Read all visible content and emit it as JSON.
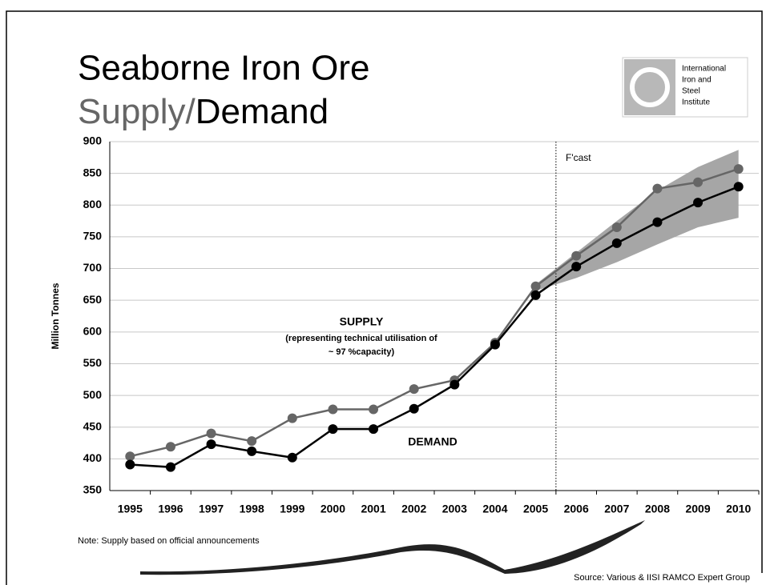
{
  "chart_data": {
    "type": "line",
    "title": "Seaborne Iron Ore",
    "subtitle_parts": [
      "Supply/",
      "Demand"
    ],
    "y_label": "Million Tonnes",
    "categories": [
      "1995",
      "1996",
      "1997",
      "1998",
      "1999",
      "2000",
      "2001",
      "2002",
      "2003",
      "2004",
      "2005",
      "2006",
      "2007",
      "2008",
      "2009",
      "2010"
    ],
    "series": [
      {
        "name": "SUPPLY",
        "color": "#666666",
        "values": [
          404,
          419,
          440,
          428,
          464,
          478,
          478,
          510,
          524,
          583,
          672,
          720,
          765,
          826,
          836,
          857
        ]
      },
      {
        "name": "DEMAND",
        "color": "#000000",
        "values": [
          391,
          387,
          423,
          412,
          402,
          447,
          447,
          479,
          517,
          580,
          658,
          703,
          740,
          773,
          804,
          829
        ]
      }
    ],
    "forecast_band": {
      "color": "#a6a6a6",
      "upper": [
        null,
        null,
        null,
        null,
        null,
        null,
        null,
        null,
        null,
        null,
        675,
        725,
        775,
        823,
        860,
        887
      ],
      "lower": [
        null,
        null,
        null,
        null,
        null,
        null,
        null,
        null,
        null,
        null,
        665,
        685,
        710,
        738,
        765,
        780
      ]
    },
    "forecast_label": "F'cast",
    "supply_note": [
      "(representing technical utilisation of",
      "~ 97 %capacity)"
    ],
    "ylim": [
      350,
      900
    ],
    "yticks": [
      350,
      400,
      450,
      500,
      550,
      600,
      650,
      700,
      750,
      800,
      850,
      900
    ],
    "grid": true,
    "note": "Note: Supply based on official announcements",
    "source": "Source: Various & IISI RAMCO Expert Group",
    "logo_text": [
      "International",
      "Iron and",
      "Steel",
      "Institute"
    ]
  }
}
